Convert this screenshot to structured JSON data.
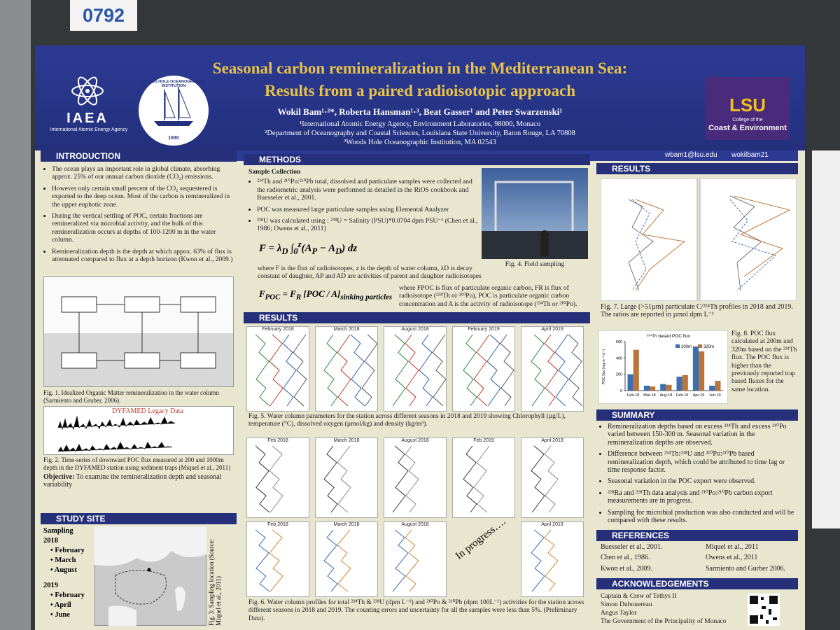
{
  "poster_number": "0792",
  "header": {
    "title_lines": [
      "Seasonal carbon remineralization in the Mediterranean Sea:",
      "Results from a paired radioisotopic approach"
    ],
    "authors": "Wokil Bam¹·²*, Roberta Hansman¹·³, Beat Gasser¹ and Peter Swarzenski¹",
    "affiliations": [
      "¹International Atomic Energy Agency, Environment Laboratories, 98000, Monaco",
      "²Department of Oceanography and Coastal Sciences, Louisiana State University, Baton Rouge, LA 70808",
      "³Woods Hole Oceanographic Institution, MA 02543"
    ],
    "iaea": "IAEA",
    "iaea_full": "International Atomic Energy Agency",
    "whoi": "WOODS HOLE OCEANOGRAPHIC INSTITUTION",
    "whoi_year": "1930",
    "lsu": "LSU",
    "lsu_sub": "College of the",
    "lsu_sub2": "Coast & Environment",
    "email": "wbam1@lsu.edu",
    "twitter": "wokilbam21"
  },
  "introduction": {
    "heading": "INTRODUCTION",
    "bullets": [
      "The ocean plays an important role in global climate, absorbing approx. 25% of our annual carbon dioxide (CO₂) emissions.",
      "However only certain small percent of the CO₂ sequestered is exported to the deep ocean. Most of the carbon is remineralized in the upper euphotic zone.",
      "During the vertical settling of POC, certain fractions are remineralized via microbial activity, and the bulk of this remineralization occurs at depths of 100-1200 m in the water column.",
      "Remineralization depth is the depth at which appox. 63% of flux is attenuated compared to flux at a depth horizon (Kwon et al., 2009.)"
    ],
    "fig1_caption": "Fig. 1. Idealized Organic Matter remineralization in the water column (Sarmiento and Gruber, 2006).",
    "fig2_title": "DYFAMED Legacy Data",
    "fig2_caption": "Fig. 2. Time-series of downward POC flux measured at 200 and 1000m depth in the DYFAMED station using sediment traps (Miquel et al., 2011)",
    "objective_label": "Objective:",
    "objective": "To examine the remineralization depth and seasonal variability"
  },
  "study_site": {
    "heading": "STUDY SITE",
    "sampling": "Sampling",
    "years": [
      {
        "year": "2018",
        "months": [
          "February",
          "March",
          "August"
        ]
      },
      {
        "year": "2019",
        "months": [
          "February",
          "April",
          "June"
        ]
      }
    ],
    "caption": "Fig. 3: Sampling location (Source: Miquel et al., 2011)"
  },
  "methods": {
    "heading": "METHODS",
    "subheading": "Sample Collection",
    "bullets": [
      "²³⁴Th and ²¹⁰Po:²¹⁰Pb total, dissolved and particulate samples were collected and the radiometric analysis were performed as detailed in the RiOS cookbook and Buesseler et al., 2001.",
      "POC was measured large particulate samples using Elemental Analyzer",
      "²³⁸U was calculated using : ²³⁸U = Salinity (PSU)*0.0704 dpm PSU⁻¹ (Chen et al., 1986; Owens et al., 2011)"
    ],
    "fig4_caption": "Fig. 4. Field sampling",
    "eq1_text": "where F is the flux of radioisotopes, z is the depth of water column, λD is decay constant of daughter, AP and AD are activities of parent and daughter radioisotopes",
    "eq2_text": "where FPOC is flux of particulate organic carbon, FR is flux of radioisotope (²³⁴Th or ²¹⁰Po), POC is particulate organic carbon concentration and A is the activity of radioisotope (²³⁴Th or ²¹⁰Po)."
  },
  "results_mid": {
    "heading": "RESULTS",
    "fig5_panels": [
      "February 2018",
      "March 2018",
      "August 2018",
      "February 2019",
      "April 2019"
    ],
    "fig5_caption": "Fig. 5. Water column parameters for the station across different seasons in 2018 and 2019 showing Chlorophyll (µg/L), temperature (°C), dissolved oxygen (µmol/kg) and density (kg/m³).",
    "fig6_panels": [
      "Feb 2018",
      "March 2018",
      "August 2018",
      "Feb 2019",
      "April 2019"
    ],
    "in_progress": "In progress….",
    "fig6_caption": "Fig. 6. Water column profiles for total ²³⁴Th & ²³⁸U (dpm L⁻¹) and ²¹⁰Po & ²¹⁰Pb (dpm 100L⁻¹) activities for the station across different seasons in 2018 and 2019. The counting errors and uncertainty for all the samples were less than 5%. (Preliminary Data)."
  },
  "results_right": {
    "heading": "RESULTS",
    "fig7_caption": "Fig. 7. Large (>51µm) particulate C/²³⁴Th profiles in 2018 and 2019. The ratios are reported in µmol dpm L⁻¹",
    "fig8_caption": "Fig. 8. POC flux calculated at 200m and 320m based on the ²³⁴Th flux. The POC flux is higher than the previously reported trap based fluxes for the same location."
  },
  "chart_data": {
    "type": "bar",
    "title": "²³⁴Th based POC flux",
    "y_label": "POC flux (mg m⁻² d⁻¹)",
    "categories": [
      "Feb-18",
      "Mar-18",
      "Aug-18",
      "Feb-19",
      "Apr-19",
      "Jun-19"
    ],
    "series": [
      {
        "name": "200m",
        "color": "#3d6fb0",
        "values": [
          200,
          60,
          80,
          170,
          540,
          60
        ]
      },
      {
        "name": "320m",
        "color": "#b8763c",
        "values": [
          500,
          50,
          70,
          190,
          480,
          120
        ]
      }
    ],
    "ylim": [
      0,
      600
    ],
    "yticks": [
      0,
      200,
      400,
      600
    ]
  },
  "summary": {
    "heading": "SUMMARY",
    "bullets": [
      "Remineralization depths based on excess ²³⁴Th and excess ²¹⁰Po varied between 150-300 m. Seasonal variation in the remineralization depths are observed.",
      "Difference between ²³⁴Th:²³⁸U and ²¹⁰Po:²¹⁰Pb based remineralization depth, which could be attributed to time lag or time response factor.",
      "Seasonal variation in the POC export were observed.",
      "²²⁸Ra and ²²⁸Th data analysis and ²¹⁰Po:²¹⁰Pb carbon export measurements are in progress.",
      "Sampling for microbial production was also conducted and will be compared with these results."
    ]
  },
  "references": {
    "heading": "REFERENCES",
    "items": [
      "Buesseler et al., 2001.",
      "Miquel et al., 2011",
      "Chen et al., 1986.",
      "Owens et al., 2011",
      "Kwon et al., 2009.",
      "Sarmiento and Gurber 2006."
    ]
  },
  "acknowledgements": {
    "heading": "ACKNOWLEDGEMENTS",
    "items": [
      "Captain & Crew of Tethys II",
      "Simon Dubouereau",
      "Angus Taylor",
      "The Government of the Principality of Monaco"
    ]
  }
}
